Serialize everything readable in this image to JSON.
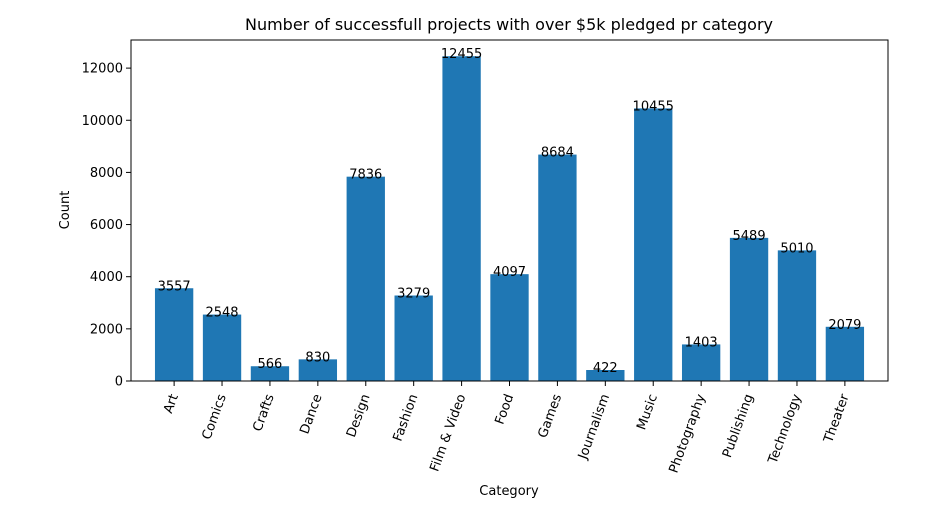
{
  "chart_data": {
    "type": "bar",
    "title": "Number of successfull projects with over $5k pledged pr category",
    "xlabel": "Category",
    "ylabel": "Count",
    "categories": [
      "Art",
      "Comics",
      "Crafts",
      "Dance",
      "Design",
      "Fashion",
      "Film & Video",
      "Food",
      "Games",
      "Journalism",
      "Music",
      "Photography",
      "Publishing",
      "Technology",
      "Theater"
    ],
    "values": [
      3557,
      2548,
      566,
      830,
      7836,
      3279,
      12455,
      4097,
      8684,
      422,
      10455,
      1403,
      5489,
      5010,
      2079
    ],
    "data_labels": [
      "3557",
      "2548",
      "566",
      "830",
      "7836",
      "3279",
      "12455",
      "4097",
      "8684",
      "422",
      "10455",
      "1403",
      "5489",
      "5010",
      "2079"
    ],
    "yticks": [
      0,
      2000,
      4000,
      6000,
      8000,
      10000,
      12000
    ],
    "ytick_labels": [
      "0",
      "2000",
      "4000",
      "6000",
      "8000",
      "10000",
      "12000"
    ],
    "ylim": [
      0,
      13078
    ],
    "grid": false,
    "xtick_rotation_deg": 70,
    "bar_color": "#1f77b4"
  }
}
